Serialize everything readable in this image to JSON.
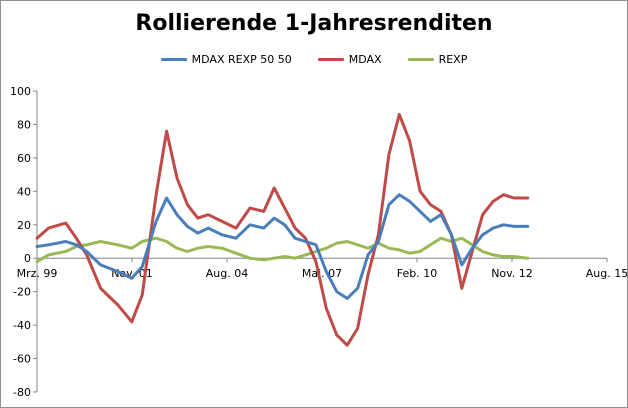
{
  "chart_data": {
    "type": "line",
    "title": "Rollierende 1-Jahresrenditen",
    "xlabel": "",
    "ylabel": "",
    "ylim": [
      -80,
      100
    ],
    "y_ticks": [
      -80,
      -60,
      -40,
      -20,
      0,
      20,
      40,
      60,
      80,
      100
    ],
    "x_tick_labels": [
      "Mrz. 99",
      "Nov. 01",
      "Aug. 04",
      "Mai. 07",
      "Feb. 10",
      "Nov. 12",
      "Aug. 15"
    ],
    "x_range": [
      1999.17,
      2015.58
    ],
    "grid": false,
    "legend_position": "top-center",
    "series": [
      {
        "name": "MDAX REXP  50 50",
        "color": "#4a7ebb",
        "x": [
          1999.17,
          1999.5,
          2000.0,
          2000.3,
          2000.6,
          2001.0,
          2001.5,
          2001.9,
          2002.2,
          2002.6,
          2002.9,
          2003.2,
          2003.5,
          2003.8,
          2004.1,
          2004.5,
          2004.9,
          2005.3,
          2005.7,
          2006.0,
          2006.3,
          2006.6,
          2006.9,
          2007.2,
          2007.5,
          2007.8,
          2008.1,
          2008.4,
          2008.7,
          2009.0,
          2009.3,
          2009.6,
          2009.9,
          2010.2,
          2010.5,
          2010.8,
          2011.1,
          2011.4,
          2011.7,
          2012.0,
          2012.3,
          2012.6,
          2012.9,
          2013.3
        ],
        "values": [
          7,
          8,
          10,
          8,
          4,
          -4,
          -8,
          -12,
          -5,
          22,
          36,
          26,
          19,
          15,
          18,
          14,
          12,
          20,
          18,
          24,
          20,
          12,
          10,
          8,
          -8,
          -20,
          -24,
          -18,
          2,
          10,
          32,
          38,
          34,
          28,
          22,
          26,
          14,
          -4,
          6,
          14,
          18,
          20,
          19,
          19
        ]
      },
      {
        "name": "MDAX",
        "color": "#be4b48",
        "x": [
          1999.17,
          1999.5,
          2000.0,
          2000.3,
          2000.6,
          2001.0,
          2001.5,
          2001.9,
          2002.2,
          2002.6,
          2002.9,
          2003.2,
          2003.5,
          2003.8,
          2004.1,
          2004.5,
          2004.9,
          2005.3,
          2005.7,
          2006.0,
          2006.3,
          2006.6,
          2006.9,
          2007.2,
          2007.5,
          2007.8,
          2008.1,
          2008.4,
          2008.7,
          2009.0,
          2009.3,
          2009.6,
          2009.9,
          2010.2,
          2010.5,
          2010.8,
          2011.1,
          2011.4,
          2011.7,
          2012.0,
          2012.3,
          2012.6,
          2012.9,
          2013.3
        ],
        "values": [
          12,
          18,
          21,
          12,
          2,
          -18,
          -28,
          -38,
          -22,
          38,
          76,
          48,
          32,
          24,
          26,
          22,
          18,
          30,
          28,
          42,
          30,
          18,
          12,
          -2,
          -30,
          -46,
          -52,
          -42,
          -10,
          14,
          62,
          86,
          70,
          40,
          32,
          28,
          14,
          -18,
          4,
          26,
          34,
          38,
          36,
          36
        ]
      },
      {
        "name": "REXP",
        "color": "#98b954",
        "x": [
          1999.17,
          1999.5,
          2000.0,
          2000.3,
          2000.6,
          2001.0,
          2001.5,
          2001.9,
          2002.2,
          2002.6,
          2002.9,
          2003.2,
          2003.5,
          2003.8,
          2004.1,
          2004.5,
          2004.9,
          2005.3,
          2005.7,
          2006.0,
          2006.3,
          2006.6,
          2006.9,
          2007.2,
          2007.5,
          2007.8,
          2008.1,
          2008.4,
          2008.7,
          2009.0,
          2009.3,
          2009.6,
          2009.9,
          2010.2,
          2010.5,
          2010.8,
          2011.1,
          2011.4,
          2011.7,
          2012.0,
          2012.3,
          2012.6,
          2012.9,
          2013.3
        ],
        "values": [
          -2,
          2,
          4,
          7,
          8,
          10,
          8,
          6,
          10,
          12,
          10,
          6,
          4,
          6,
          7,
          6,
          3,
          0,
          -1,
          0,
          1,
          0,
          2,
          4,
          6,
          9,
          10,
          8,
          6,
          9,
          6,
          5,
          3,
          4,
          8,
          12,
          10,
          12,
          8,
          4,
          2,
          1,
          1,
          0
        ]
      }
    ]
  }
}
